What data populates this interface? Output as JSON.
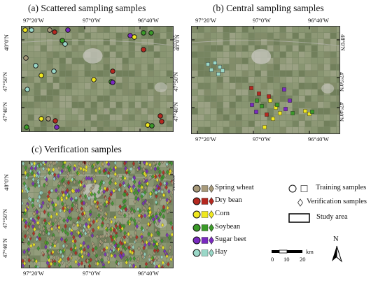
{
  "panels": [
    {
      "key": "a",
      "title": "(a) Scattered sampling samples",
      "lon_labels": [
        "97°20'W",
        "97°0'W",
        "96°40'W"
      ],
      "lat_labels_left": [
        "48°0'N",
        "47°50'N",
        "47°40'N"
      ],
      "lat_labels_right": [
        "48°0'N",
        "47°50'N",
        "47°40'N"
      ]
    },
    {
      "key": "b",
      "title": "(b) Central sampling samples",
      "lon_labels": [
        "97°20'W",
        "97°0'W",
        "96°40'W"
      ],
      "lat_labels_left": [
        "48°0'N",
        "47°50'N",
        "47°40'N"
      ],
      "lat_labels_right": [
        "48°0'N",
        "47°50'N",
        "47°40'N"
      ]
    },
    {
      "key": "c",
      "title": "(c) Verification samples",
      "lon_labels": [
        "97°20'W",
        "97°0'W",
        "96°40'W"
      ],
      "lat_labels_left": [
        "48°0'N",
        "47°50'N",
        "47°40'N"
      ],
      "lat_labels_right": [
        "48°0'N",
        "47°50'N",
        "47°40'N"
      ]
    }
  ],
  "legend": {
    "classes": [
      {
        "name": "Spring wheat",
        "color": "#a89a7a",
        "stroke": "#4a4a3a"
      },
      {
        "name": "Dry bean",
        "color": "#b5281f",
        "stroke": "#5a1510"
      },
      {
        "name": "Corn",
        "color": "#f0e81e",
        "stroke": "#6a6a10"
      },
      {
        "name": "Soybean",
        "color": "#3a9a28",
        "stroke": "#1a4a10"
      },
      {
        "name": "Sugar beet",
        "color": "#7a2ac0",
        "stroke": "#3a1060"
      },
      {
        "name": "Hay",
        "color": "#9ad8c8",
        "stroke": "#3a6a60"
      }
    ],
    "training_label": "Training samples",
    "verification_label": "Verification samples",
    "study_area_label": "Study area",
    "scale_ticks": [
      "0",
      "10",
      "20"
    ],
    "scale_unit": "km",
    "north_label": "N"
  }
}
